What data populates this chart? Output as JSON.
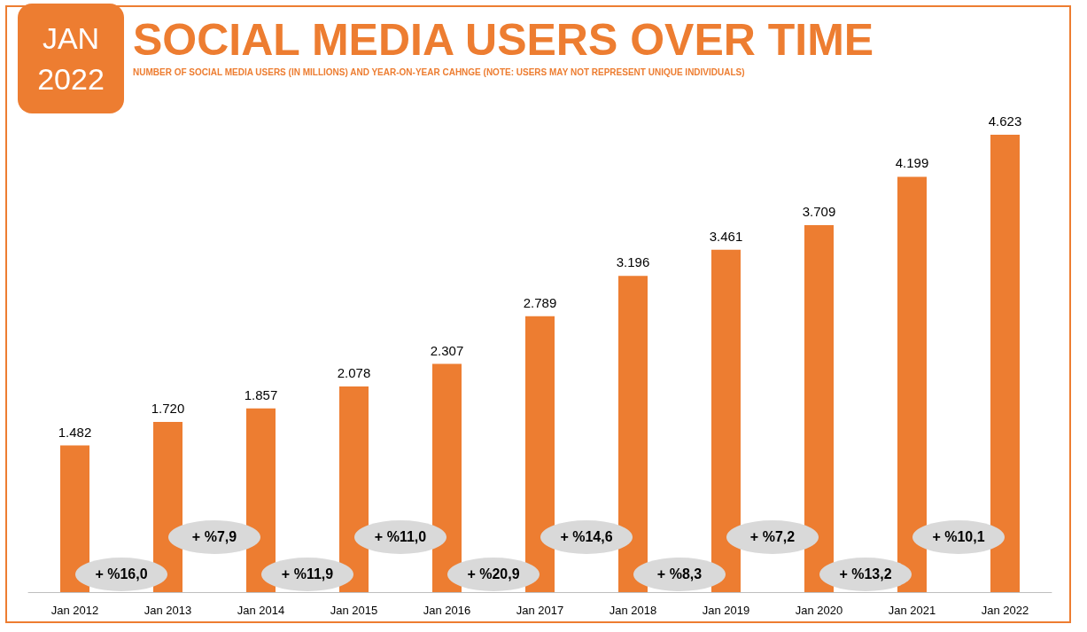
{
  "chart_data": {
    "type": "bar",
    "title": "SOCIAL MEDIA USERS OVER TIME",
    "subtitle": "NUMBER OF SOCIAL MEDIA USERS (IN MILLIONS) AND YEAR-ON-YEAR CAHNGE (NOTE: USERS MAY NOT REPRESENT UNIQUE INDIVIDUALS)",
    "categories": [
      "Jan 2012",
      "Jan 2013",
      "Jan 2014",
      "Jan 2015",
      "Jan 2016",
      "Jan 2017",
      "Jan 2018",
      "Jan 2019",
      "Jan 2020",
      "Jan 2021",
      "Jan 2022"
    ],
    "values": [
      1482,
      1720,
      1857,
      2078,
      2307,
      2789,
      3196,
      3461,
      3709,
      4199,
      4623
    ],
    "value_labels": [
      "1.482",
      "1.720",
      "1.857",
      "2.078",
      "2.307",
      "2.789",
      "3.196",
      "3.461",
      "3.709",
      "4.199",
      "4.623"
    ],
    "color": "#ed7d31",
    "annotations": [
      "JAN\n2022",
      "+ %16,0",
      "+ %7,9",
      "+ %11,9",
      "+ %11,0",
      "+ %20,9",
      "+ %14,6",
      "+ %8,3",
      "+ %7,2",
      "+ %13,2",
      "+ %10,1"
    ]
  }
}
